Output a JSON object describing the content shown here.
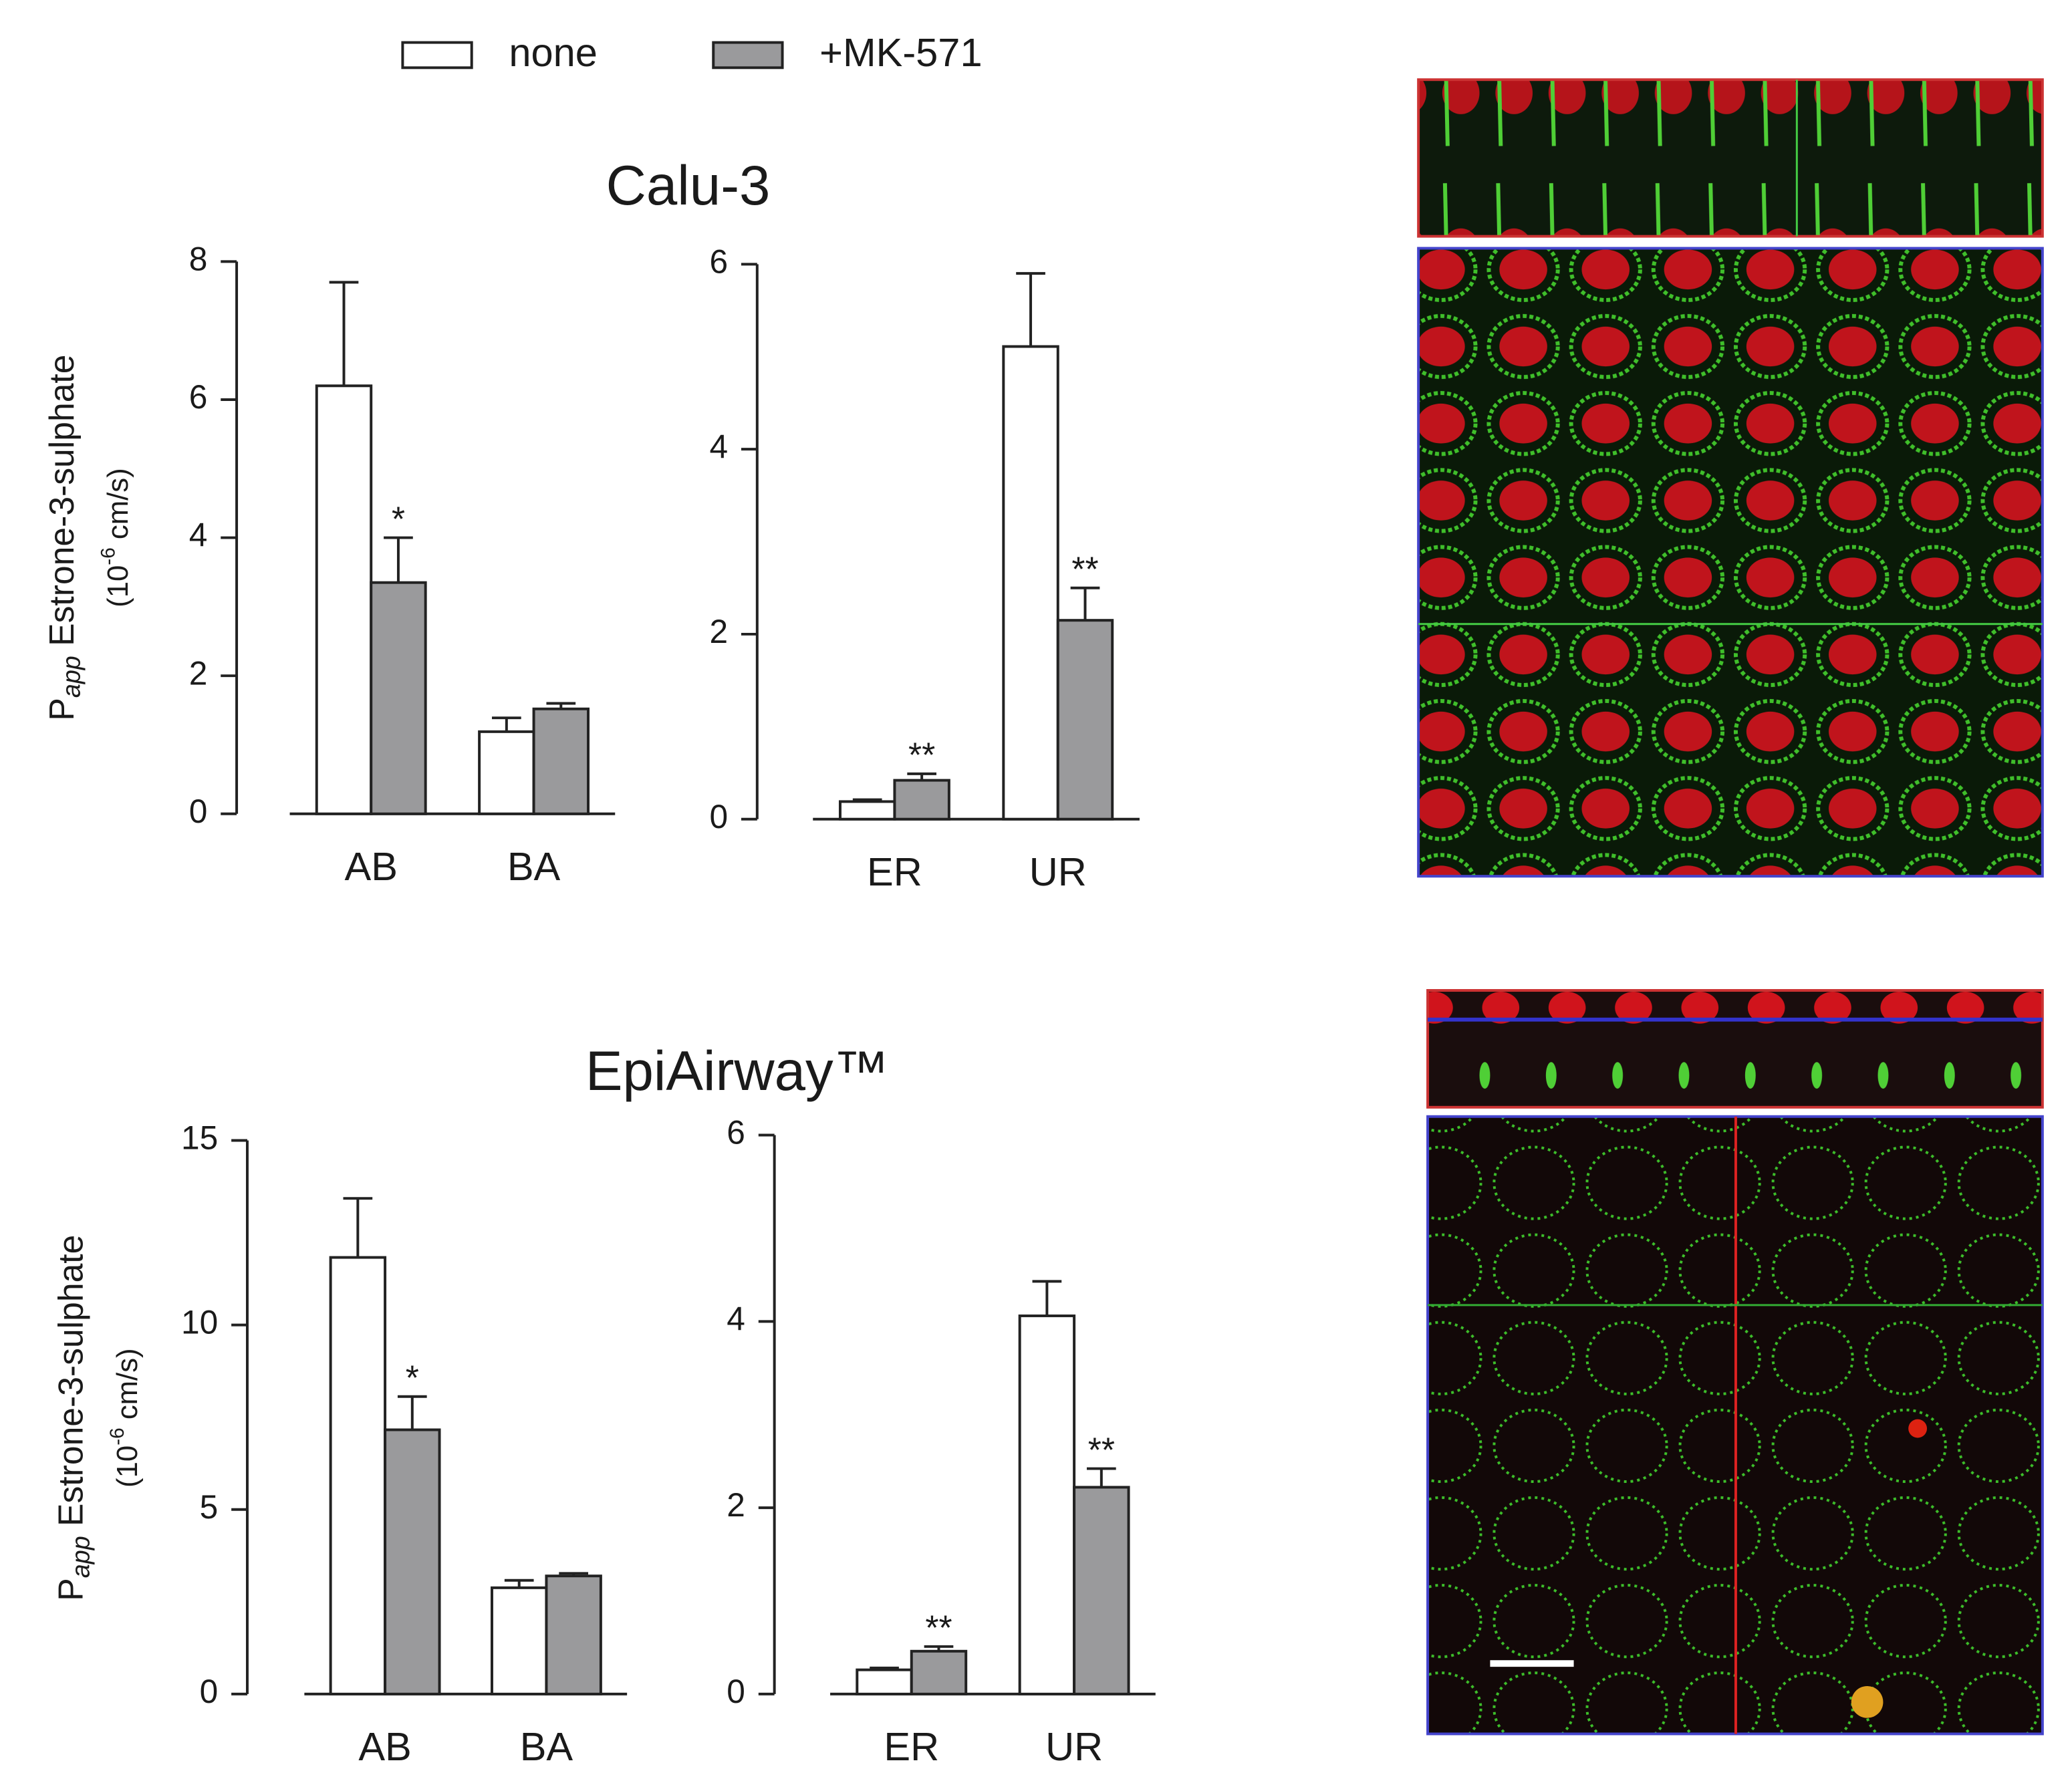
{
  "legend": {
    "entries": [
      {
        "name": "none",
        "color": "#ffffff"
      },
      {
        "name": "+MK-571",
        "color": "#9a9a9c"
      }
    ]
  },
  "chart_data": [
    {
      "type": "bar",
      "title": "Calu-3",
      "y_label": [
        "P",
        "app",
        " Estrone-3-sulphate"
      ],
      "y_units": [
        "(10",
        "-6",
        " cm/s)"
      ],
      "categories": [
        "AB",
        "BA"
      ],
      "series": [
        {
          "values": [
            6.2,
            1.19
          ],
          "errors": [
            1.5,
            0.2
          ]
        },
        {
          "values": [
            3.35,
            1.52
          ],
          "errors": [
            0.65,
            0.08
          ],
          "significance": [
            "*",
            null
          ]
        }
      ],
      "ylim": [
        0,
        8
      ],
      "yticks": [
        0,
        2,
        4,
        6,
        8
      ]
    },
    {
      "type": "bar",
      "categories": [
        "ER",
        "UR"
      ],
      "series": [
        {
          "values": [
            0.19,
            5.11
          ],
          "errors": [
            0.02,
            0.79
          ]
        },
        {
          "values": [
            0.42,
            2.15
          ],
          "errors": [
            0.07,
            0.35
          ],
          "significance": [
            "**",
            "**"
          ]
        }
      ],
      "ylim": [
        0,
        6
      ],
      "yticks": [
        0,
        2,
        4,
        6
      ]
    },
    {
      "type": "bar",
      "title": "EpiAirway™",
      "y_label": [
        "P",
        "app",
        " Estrone-3-sulphate"
      ],
      "y_units": [
        "(10",
        "-6",
        " cm/s)"
      ],
      "categories": [
        "AB",
        "BA"
      ],
      "series": [
        {
          "values": [
            11.83,
            2.88
          ],
          "errors": [
            1.6,
            0.2
          ]
        },
        {
          "values": [
            7.16,
            3.2
          ],
          "errors": [
            0.9,
            0.07
          ],
          "significance": [
            "*",
            null
          ]
        }
      ],
      "ylim": [
        0,
        15
      ],
      "yticks": [
        0,
        5,
        10,
        15
      ]
    },
    {
      "type": "bar",
      "categories": [
        "ER",
        "UR"
      ],
      "series": [
        {
          "values": [
            0.26,
            4.06
          ],
          "errors": [
            0.02,
            0.37
          ]
        },
        {
          "values": [
            0.46,
            2.22
          ],
          "errors": [
            0.05,
            0.2
          ],
          "significance": [
            "**",
            "**"
          ]
        }
      ],
      "ylim": [
        0,
        6
      ],
      "yticks": [
        0,
        2,
        4,
        6
      ]
    }
  ]
}
